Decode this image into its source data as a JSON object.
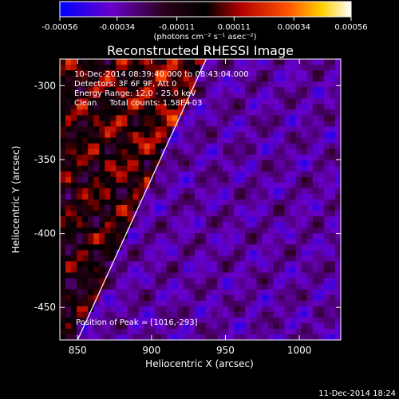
{
  "chart_data": {
    "type": "heatmap",
    "title": "Reconstructed RHESSI Image",
    "xlabel": "Heliocentric X (arcsec)",
    "ylabel": "Heliocentric Y (arcsec)",
    "xlim": [
      838,
      1028
    ],
    "ylim": [
      -472,
      -282
    ],
    "x_ticks": [
      850,
      900,
      950,
      1000
    ],
    "y_ticks": [
      -300,
      -350,
      -400,
      -450
    ],
    "colorbar": {
      "range": [
        -0.00056,
        0.00056
      ],
      "tick_values": [
        -0.00056,
        -0.00034,
        -0.00011,
        0.00011,
        0.00034,
        0.00056
      ],
      "tick_labels": [
        "-0.00056",
        "-0.00034",
        "-0.00011",
        "0.00011",
        "0.00034",
        "0.00056"
      ],
      "unit_label": "(photons cm⁻² s⁻¹ asec⁻²)"
    },
    "annotations": [
      "10-Dec-2014 08:39:40.000 to 08:43:04.000",
      "Detectors: 3F 6F 9F, Att 0",
      "Energy Range: 12.0 - 25.0 keV",
      "Clean     Total counts: 1.58E+03"
    ],
    "peak_label": "Position of Peak = [1016,-293]",
    "peak": {
      "x": 1016,
      "y": -293
    },
    "limb_line": [
      {
        "x": 850,
        "y": -472
      },
      {
        "x": 937,
        "y": -282
      }
    ]
  },
  "footer": {
    "timestamp": "11-Dec-2014 18:24"
  }
}
